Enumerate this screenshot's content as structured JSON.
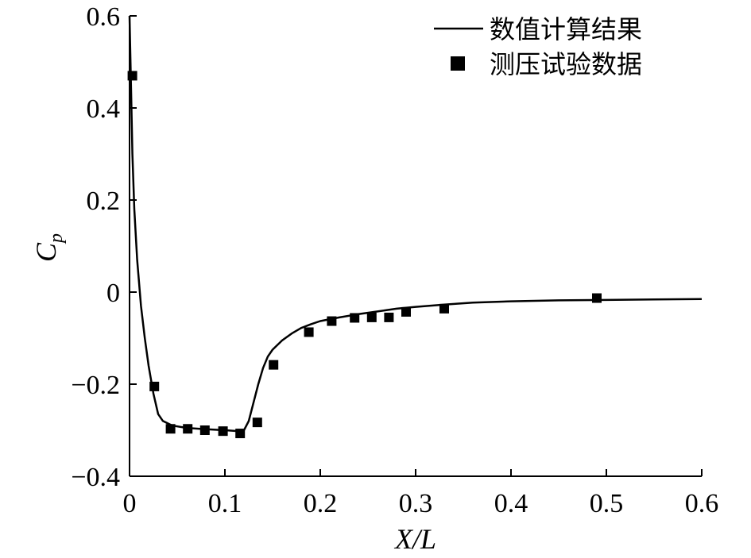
{
  "chart_data": {
    "type": "line",
    "xlabel": "X/L",
    "ylabel_main": "C",
    "ylabel_sub": "p",
    "xlim": [
      0,
      0.6
    ],
    "ylim": [
      -0.4,
      0.6
    ],
    "xticks": [
      0,
      0.1,
      0.2,
      0.3,
      0.4,
      0.5,
      0.6
    ],
    "xtick_labels": [
      "0",
      "0.1",
      "0.2",
      "0.3",
      "0.4",
      "0.5",
      "0.6"
    ],
    "yticks": [
      -0.4,
      -0.2,
      0,
      0.2,
      0.4,
      0.6
    ],
    "ytick_labels": [
      "−0.4",
      "−0.2",
      "0",
      "0.2",
      "0.4",
      "0.6"
    ],
    "grid": false,
    "legend_position": "top-right",
    "series": [
      {
        "name": "数值计算结果",
        "style": "line",
        "color": "#000000",
        "x": [
          0.0,
          0.0015,
          0.003,
          0.005,
          0.008,
          0.012,
          0.016,
          0.02,
          0.025,
          0.03,
          0.035,
          0.045,
          0.06,
          0.08,
          0.1,
          0.115,
          0.12,
          0.125,
          0.13,
          0.135,
          0.14,
          0.145,
          0.15,
          0.16,
          0.17,
          0.18,
          0.19,
          0.2,
          0.22,
          0.24,
          0.26,
          0.28,
          0.3,
          0.33,
          0.36,
          0.4,
          0.45,
          0.5,
          0.55,
          0.6
        ],
        "y": [
          0.6,
          0.45,
          0.3,
          0.18,
          0.07,
          -0.03,
          -0.1,
          -0.16,
          -0.22,
          -0.265,
          -0.28,
          -0.29,
          -0.295,
          -0.298,
          -0.3,
          -0.302,
          -0.3,
          -0.28,
          -0.24,
          -0.2,
          -0.165,
          -0.14,
          -0.125,
          -0.105,
          -0.09,
          -0.078,
          -0.07,
          -0.063,
          -0.055,
          -0.048,
          -0.042,
          -0.036,
          -0.032,
          -0.027,
          -0.023,
          -0.02,
          -0.018,
          -0.017,
          -0.016,
          -0.015
        ]
      },
      {
        "name": "测压试验数据",
        "style": "marker",
        "marker": "square",
        "color": "#000000",
        "x": [
          0.003,
          0.026,
          0.043,
          0.061,
          0.079,
          0.098,
          0.116,
          0.134,
          0.151,
          0.188,
          0.212,
          0.236,
          0.254,
          0.272,
          0.29,
          0.33,
          0.49
        ],
        "y": [
          0.47,
          -0.205,
          -0.297,
          -0.297,
          -0.3,
          -0.302,
          -0.307,
          -0.283,
          -0.158,
          -0.087,
          -0.063,
          -0.056,
          -0.055,
          -0.055,
          -0.043,
          -0.036,
          -0.013
        ]
      }
    ]
  }
}
